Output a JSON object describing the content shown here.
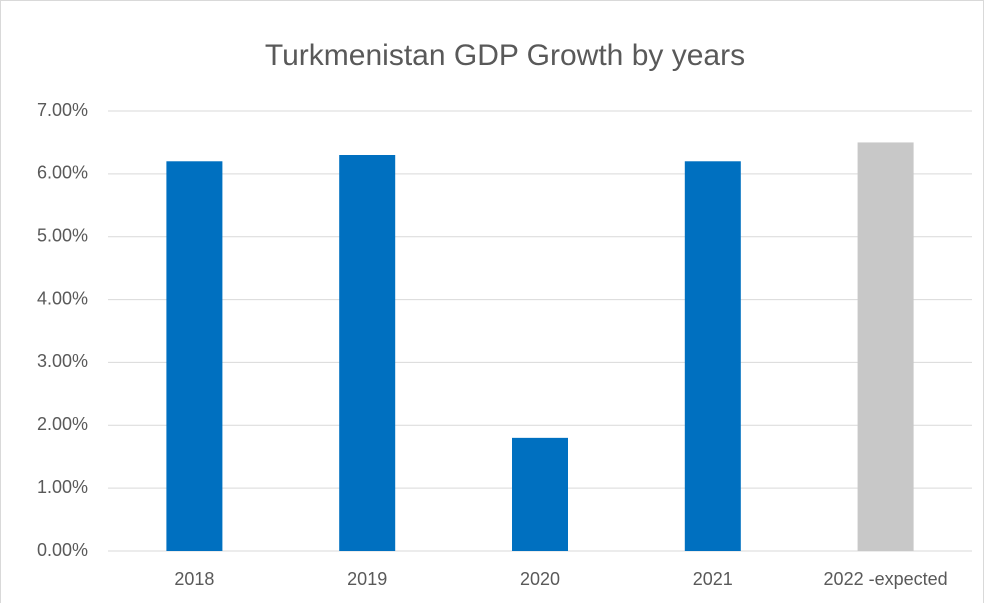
{
  "chart_data": {
    "type": "bar",
    "title": "Turkmenistan GDP Growth by years",
    "categories": [
      "2018",
      "2019",
      "2020",
      "2021",
      "2022 -expected"
    ],
    "values": [
      6.2,
      6.3,
      1.8,
      6.2,
      6.5
    ],
    "colors": [
      "#0070c0",
      "#0070c0",
      "#0070c0",
      "#0070c0",
      "#c8c8c8"
    ],
    "ylim": [
      0,
      7
    ],
    "yticks": [
      {
        "value": 0,
        "label": "0.00%"
      },
      {
        "value": 1,
        "label": "1.00%"
      },
      {
        "value": 2,
        "label": "2.00%"
      },
      {
        "value": 3,
        "label": "3.00%"
      },
      {
        "value": 4,
        "label": "4.00%"
      },
      {
        "value": 5,
        "label": "5.00%"
      },
      {
        "value": 6,
        "label": "6.00%"
      },
      {
        "value": 7,
        "label": "7.00%"
      }
    ],
    "grid": true
  }
}
